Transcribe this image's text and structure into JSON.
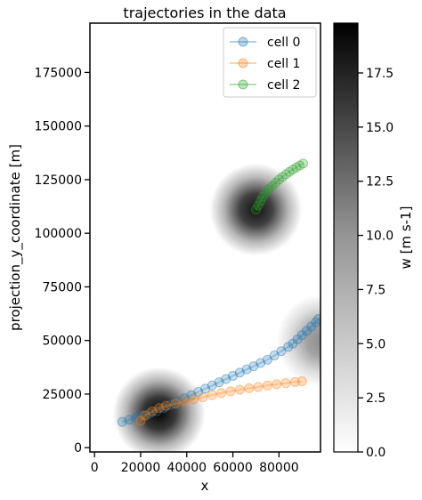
{
  "chart_data": [
    {
      "type": "scatter",
      "title": "trajectories in the data",
      "xlabel": "x",
      "ylabel": "projection_y_coordinate [m]",
      "xlim": [
        -2000,
        98000
      ],
      "ylim": [
        -2000,
        198000
      ],
      "xticks": [
        0,
        20000,
        40000,
        60000,
        80000
      ],
      "xtick_labels": [
        "0",
        "20000",
        "40000",
        "60000",
        "80000"
      ],
      "yticks": [
        0,
        25000,
        50000,
        75000,
        100000,
        125000,
        150000,
        175000
      ],
      "ytick_labels": [
        "0",
        "25000",
        "50000",
        "75000",
        "100000",
        "125000",
        "150000",
        "175000"
      ],
      "legend": "top-right",
      "background_field": {
        "name": "w",
        "blobs": [
          {
            "x": 28000,
            "y": 16000,
            "peak": 19.5
          },
          {
            "x": 70000,
            "y": 111000,
            "peak": 18.5
          },
          {
            "x": 99000,
            "y": 50000,
            "peak": 9
          }
        ]
      },
      "series": [
        {
          "name": "cell 0",
          "color": "#1f77b4",
          "x": [
            12000,
            15000,
            18000,
            21000,
            24000,
            27000,
            30000,
            33000,
            36000,
            39000,
            42000,
            45000,
            48000,
            51000,
            54000,
            57000,
            60000,
            63000,
            66000,
            69000,
            72000,
            75000,
            78000,
            81000,
            84000,
            86000,
            88000,
            90000,
            92000,
            94000,
            96000,
            97000
          ],
          "y": [
            12000,
            13000,
            14000,
            15000,
            16000,
            17000,
            18500,
            20000,
            21500,
            23000,
            24500,
            26000,
            27500,
            29000,
            30500,
            32000,
            33500,
            35000,
            36500,
            38000,
            39500,
            41000,
            43000,
            45000,
            47000,
            48500,
            50500,
            52500,
            54500,
            56500,
            58500,
            60000
          ]
        },
        {
          "name": "cell 1",
          "color": "#ff7f0e",
          "x": [
            20000,
            22000,
            25000,
            28000,
            31000,
            35000,
            39000,
            43000,
            47000,
            51000,
            55000,
            59000,
            63000,
            67000,
            71000,
            75000,
            79000,
            83000,
            87000,
            90000
          ],
          "y": [
            12500,
            15000,
            17000,
            18500,
            19500,
            20500,
            21500,
            22500,
            23500,
            24500,
            25500,
            26300,
            27000,
            27700,
            28300,
            29000,
            29600,
            30100,
            30600,
            31000
          ]
        },
        {
          "name": "cell 2",
          "color": "#2ca02c",
          "x": [
            70000,
            71000,
            72000,
            73000,
            74000,
            75500,
            77000,
            78500,
            80000,
            81500,
            83000,
            84500,
            86000,
            87500,
            89000,
            90500
          ],
          "y": [
            111000,
            113000,
            115000,
            117000,
            118800,
            120500,
            122000,
            123500,
            125000,
            126300,
            127500,
            128600,
            129700,
            130700,
            131600,
            132500
          ]
        }
      ]
    },
    {
      "type": "colorbar",
      "label": "w [m s-1]",
      "range": [
        0,
        19.8
      ],
      "ticks": [
        0,
        2.5,
        5,
        7.5,
        10,
        12.5,
        15,
        17.5
      ],
      "tick_labels": [
        "0.0",
        "2.5",
        "5.0",
        "7.5",
        "10.0",
        "12.5",
        "15.0",
        "17.5"
      ],
      "colormap": "Greys"
    }
  ]
}
